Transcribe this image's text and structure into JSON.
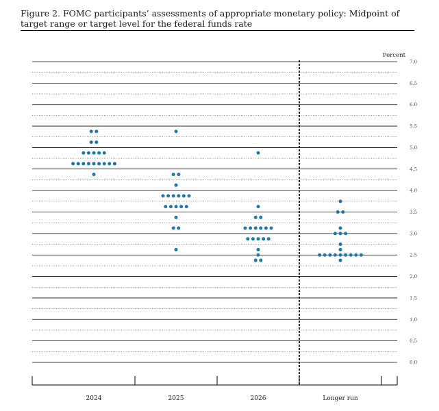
{
  "figure": {
    "caption": "Figure 2.  FOMC participants’ assessments of appropriate monetary policy: Midpoint of target range or target level for the federal funds rate"
  },
  "chart_data": {
    "type": "scatter",
    "title": "",
    "xlabel": "",
    "ylabel": "Percent",
    "ylim": [
      0,
      7
    ],
    "y_ticks": [
      "0.0",
      "0.5",
      "1.0",
      "1.5",
      "2.0",
      "2.5",
      "3.0",
      "3.5",
      "4.0",
      "4.5",
      "5.0",
      "5.5",
      "6.0",
      "6.5",
      "7.0"
    ],
    "categories": [
      "2024",
      "2025",
      "2026",
      "Longer run"
    ],
    "dot_color": "#1f77a8",
    "grid": true,
    "series": [
      {
        "category": "2024",
        "points": [
          {
            "y": 5.375,
            "count": 2
          },
          {
            "y": 5.125,
            "count": 2
          },
          {
            "y": 4.875,
            "count": 5
          },
          {
            "y": 4.625,
            "count": 9
          },
          {
            "y": 4.375,
            "count": 1
          }
        ]
      },
      {
        "category": "2025",
        "points": [
          {
            "y": 5.375,
            "count": 1
          },
          {
            "y": 4.375,
            "count": 2
          },
          {
            "y": 4.125,
            "count": 1
          },
          {
            "y": 3.875,
            "count": 6
          },
          {
            "y": 3.625,
            "count": 5
          },
          {
            "y": 3.375,
            "count": 1
          },
          {
            "y": 3.125,
            "count": 2
          },
          {
            "y": 2.625,
            "count": 1
          }
        ]
      },
      {
        "category": "2026",
        "points": [
          {
            "y": 4.875,
            "count": 1
          },
          {
            "y": 3.625,
            "count": 1
          },
          {
            "y": 3.375,
            "count": 2
          },
          {
            "y": 3.125,
            "count": 6
          },
          {
            "y": 2.875,
            "count": 5
          },
          {
            "y": 2.625,
            "count": 1
          },
          {
            "y": 2.5,
            "count": 1
          },
          {
            "y": 2.375,
            "count": 2
          }
        ]
      },
      {
        "category": "Longer run",
        "points": [
          {
            "y": 3.75,
            "count": 1
          },
          {
            "y": 3.5,
            "count": 2
          },
          {
            "y": 3.125,
            "count": 1
          },
          {
            "y": 3.0,
            "count": 3
          },
          {
            "y": 2.75,
            "count": 1
          },
          {
            "y": 2.625,
            "count": 1
          },
          {
            "y": 2.5,
            "count": 9
          },
          {
            "y": 2.375,
            "count": 1
          }
        ]
      }
    ]
  }
}
